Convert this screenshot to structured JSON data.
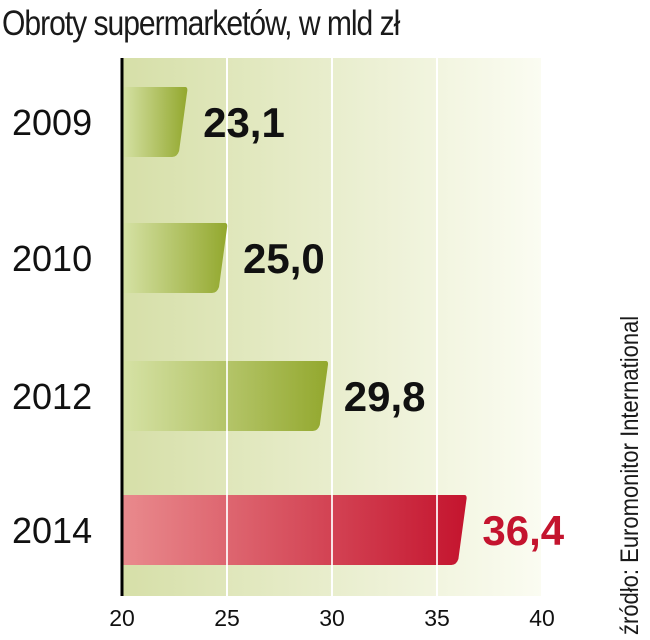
{
  "chart_data": {
    "type": "bar",
    "orientation": "horizontal",
    "title": "Obroty supermarketów, w mld zł",
    "source": "źródło: Euromonitor International",
    "categories": [
      "2009",
      "2010",
      "2012",
      "2014"
    ],
    "values": [
      23.1,
      25.0,
      29.8,
      36.4
    ],
    "value_labels": [
      "23,1",
      "25,0",
      "29,8",
      "36,4"
    ],
    "xlim": [
      20,
      40
    ],
    "xticks": [
      20,
      25,
      30,
      35,
      40
    ],
    "grid": true,
    "colors": {
      "bar_green_light": "#d6e2a6",
      "bar_green_dark": "#93a82e",
      "bar_red_light": "#e98a8d",
      "bar_red_dark": "#c4142e",
      "highlight_label": "#c4142e",
      "label": "#111111",
      "background_left": "#d6dfa8",
      "background_right": "#fbfcf2"
    },
    "highlight_index": 3
  }
}
